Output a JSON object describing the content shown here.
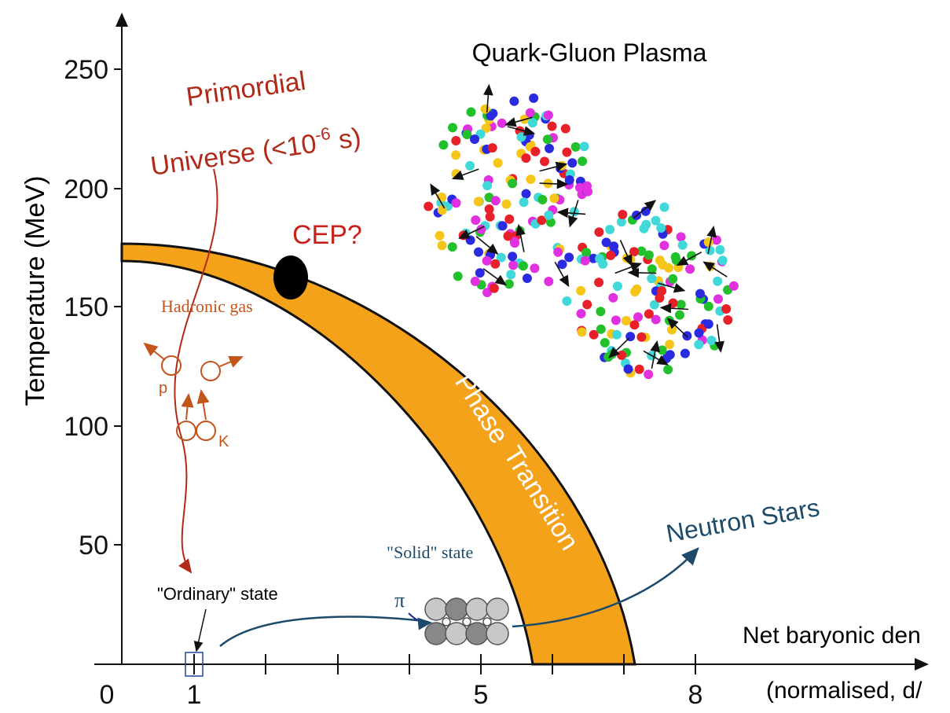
{
  "title": "Quark-Gluon Plasma",
  "y_axis": {
    "label": "Temperature (MeV)",
    "ticks": [
      "50",
      "100",
      "150",
      "200",
      "250"
    ]
  },
  "x_axis": {
    "label": "Net baryonic den",
    "sublabel": "(normalised, d/",
    "ticks": [
      "0",
      "1",
      "5",
      "8"
    ]
  },
  "primordial": {
    "line1": "Primordial",
    "line2": "Universe (<10",
    "exponent": "-6",
    "unit": " s)"
  },
  "cep": "CEP?",
  "hadronic": {
    "label": "Hadronic gas",
    "p": "p",
    "k": "K"
  },
  "phase": {
    "line1": "Phase",
    "line2": "Transition"
  },
  "neutron_stars": "Neutron Stars",
  "solid_state": "\"Solid\" state",
  "pion": "π",
  "ordinary_state": "\"Ordinary\" state"
}
